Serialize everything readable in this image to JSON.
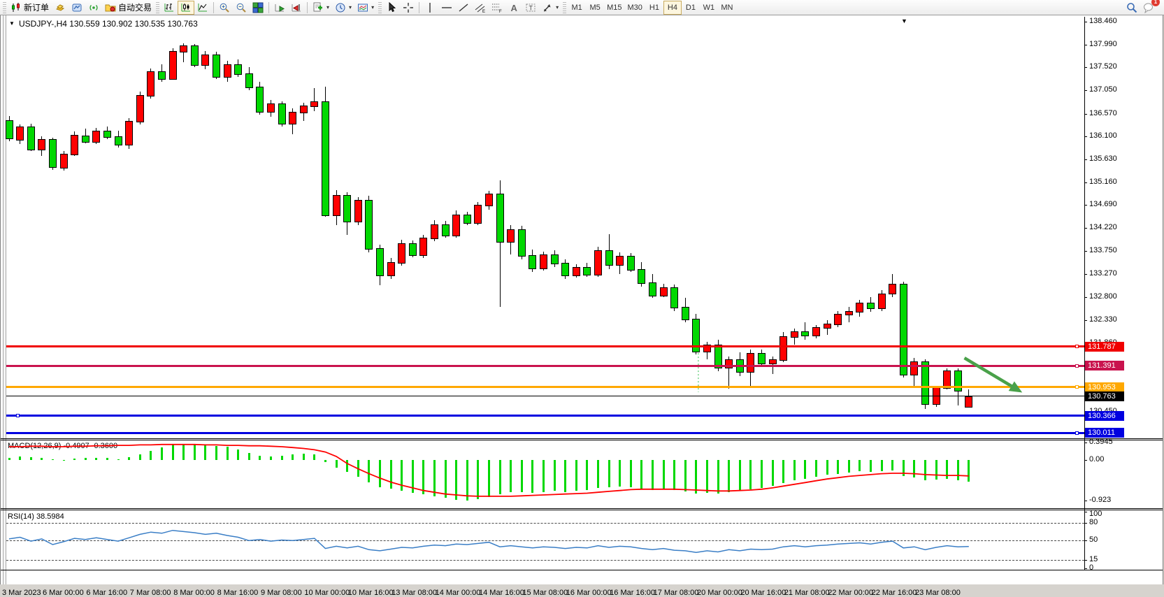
{
  "toolbar": {
    "new_order": "新订单",
    "auto_trading": "自动交易",
    "timeframes": [
      "M1",
      "M5",
      "M15",
      "M30",
      "H1",
      "H4",
      "D1",
      "W1",
      "MN"
    ],
    "active_timeframe": "H4",
    "notification_count": "1",
    "icon_names": [
      "new-order-icon",
      "gold-icon",
      "terminal-icon",
      "signal-icon",
      "autotrade-icon",
      "bar-chart-icon",
      "candlestick-icon",
      "line-chart-icon",
      "zoom-in-icon",
      "zoom-out-icon",
      "tile-windows-icon",
      "autoscroll-icon",
      "chart-shift-icon",
      "add-object-icon",
      "period-icon",
      "template-icon",
      "cursor-icon",
      "crosshair-icon",
      "vertical-line-icon",
      "horizontal-line-icon",
      "trendline-icon",
      "channel-icon",
      "fibonacci-icon",
      "text-icon",
      "label-icon",
      "arrows-icon",
      "search-icon",
      "chat-icon"
    ]
  },
  "chart_title": "USDJPY-,H4  130.559 130.902 130.535 130.763",
  "price_axis_ticks": [
    "138.460",
    "137.990",
    "137.520",
    "137.050",
    "136.570",
    "136.100",
    "135.630",
    "135.160",
    "134.690",
    "134.220",
    "133.750",
    "133.270",
    "132.800",
    "132.330",
    "131.860",
    "131.390",
    "130.920",
    "130.450"
  ],
  "levels": [
    {
      "label": "131.787",
      "price": 131.787,
      "color": "#f00000",
      "thickness": 3,
      "handle": "right"
    },
    {
      "label": "131.391",
      "price": 131.391,
      "color": "#c9134e",
      "thickness": 3,
      "handle": "right"
    },
    {
      "label": "130.953",
      "price": 130.953,
      "color": "#ffa800",
      "thickness": 3,
      "handle": "right"
    },
    {
      "label": "130.763",
      "price": 130.763,
      "color": "#000000",
      "thickness": 1,
      "handle": "none"
    },
    {
      "label": "130.366",
      "price": 130.366,
      "color": "#0000e0",
      "thickness": 3,
      "handle": "left"
    },
    {
      "label": "130.011",
      "price": 130.011,
      "color": "#0000e0",
      "thickness": 3,
      "handle": "right"
    }
  ],
  "time_axis": [
    "3 Mar 2023",
    "6 Mar 00:00",
    "6 Mar 16:00",
    "7 Mar 08:00",
    "8 Mar 00:00",
    "8 Mar 16:00",
    "9 Mar 08:00",
    "10 Mar 00:00",
    "10 Mar 16:00",
    "13 Mar 08:00",
    "14 Mar 00:00",
    "14 Mar 16:00",
    "15 Mar 08:00",
    "16 Mar 00:00",
    "16 Mar 16:00",
    "17 Mar 08:00",
    "20 Mar 00:00",
    "20 Mar 16:00",
    "21 Mar 08:00",
    "22 Mar 00:00",
    "22 Mar 16:00",
    "23 Mar 08:00"
  ],
  "chart_data": {
    "type": "candlestick",
    "symbol": "USDJPY-",
    "timeframe": "H4",
    "ohlc_display": {
      "open": "130.559",
      "high": "130.902",
      "low": "130.535",
      "close": "130.763"
    },
    "ylim": [
      129.9,
      138.56
    ],
    "bull_color": "#ff0000",
    "bear_color": "#00d800",
    "candles": [
      [
        136.43,
        136.52,
        136.0,
        136.08
      ],
      [
        136.05,
        136.35,
        135.95,
        136.31
      ],
      [
        136.3,
        136.36,
        135.8,
        135.84
      ],
      [
        135.84,
        136.1,
        135.7,
        136.05
      ],
      [
        136.04,
        136.08,
        135.42,
        135.48
      ],
      [
        135.47,
        135.8,
        135.4,
        135.74
      ],
      [
        135.74,
        136.2,
        135.7,
        136.13
      ],
      [
        136.12,
        136.26,
        135.96,
        136.0
      ],
      [
        136.0,
        136.28,
        135.94,
        136.22
      ],
      [
        136.22,
        136.3,
        136.05,
        136.1
      ],
      [
        136.1,
        136.22,
        135.88,
        135.95
      ],
      [
        135.95,
        136.48,
        135.85,
        136.42
      ],
      [
        136.42,
        137.02,
        136.35,
        136.95
      ],
      [
        136.95,
        137.5,
        136.88,
        137.44
      ],
      [
        137.44,
        137.58,
        137.22,
        137.3
      ],
      [
        137.3,
        137.92,
        137.28,
        137.86
      ],
      [
        137.86,
        138.01,
        137.62,
        137.97
      ],
      [
        137.97,
        138.0,
        137.52,
        137.58
      ],
      [
        137.58,
        137.85,
        137.48,
        137.78
      ],
      [
        137.78,
        137.84,
        137.28,
        137.34
      ],
      [
        137.34,
        137.66,
        137.22,
        137.58
      ],
      [
        137.58,
        137.68,
        137.32,
        137.4
      ],
      [
        137.4,
        137.52,
        137.05,
        137.12
      ],
      [
        137.12,
        137.22,
        136.55,
        136.62
      ],
      [
        136.62,
        136.85,
        136.5,
        136.78
      ],
      [
        136.78,
        136.82,
        136.3,
        136.38
      ],
      [
        136.38,
        136.68,
        136.15,
        136.6
      ],
      [
        136.6,
        136.8,
        136.42,
        136.74
      ],
      [
        136.74,
        137.1,
        136.62,
        136.82
      ],
      [
        136.82,
        137.12,
        134.45,
        134.5
      ],
      [
        134.5,
        135.0,
        134.28,
        134.9
      ],
      [
        134.9,
        134.96,
        134.08,
        134.36
      ],
      [
        134.36,
        134.86,
        134.28,
        134.8
      ],
      [
        134.8,
        134.88,
        133.72,
        133.8
      ],
      [
        133.8,
        133.88,
        133.05,
        133.26
      ],
      [
        133.26,
        133.6,
        133.18,
        133.52
      ],
      [
        133.52,
        133.98,
        133.45,
        133.9
      ],
      [
        133.9,
        133.96,
        133.62,
        133.68
      ],
      [
        133.68,
        134.08,
        133.6,
        134.02
      ],
      [
        134.02,
        134.38,
        133.95,
        134.3
      ],
      [
        134.3,
        134.36,
        134.02,
        134.08
      ],
      [
        134.08,
        134.58,
        134.02,
        134.5
      ],
      [
        134.5,
        134.56,
        134.28,
        134.34
      ],
      [
        134.34,
        134.76,
        134.28,
        134.7
      ],
      [
        134.7,
        134.99,
        134.6,
        134.92
      ],
      [
        134.92,
        135.2,
        132.6,
        133.95
      ],
      [
        133.95,
        134.28,
        133.68,
        134.2
      ],
      [
        134.2,
        134.26,
        133.58,
        133.66
      ],
      [
        133.66,
        133.78,
        133.32,
        133.4
      ],
      [
        133.4,
        133.74,
        133.35,
        133.68
      ],
      [
        133.68,
        133.76,
        133.42,
        133.5
      ],
      [
        133.5,
        133.58,
        133.18,
        133.26
      ],
      [
        133.26,
        133.48,
        133.2,
        133.42
      ],
      [
        133.42,
        133.5,
        133.22,
        133.28
      ],
      [
        133.28,
        133.84,
        133.22,
        133.76
      ],
      [
        133.76,
        134.1,
        133.38,
        133.48
      ],
      [
        133.48,
        133.72,
        133.28,
        133.65
      ],
      [
        133.65,
        133.7,
        133.32,
        133.38
      ],
      [
        133.38,
        133.52,
        133.02,
        133.1
      ],
      [
        133.1,
        133.28,
        132.78,
        132.85
      ],
      [
        132.85,
        133.08,
        132.8,
        133.0
      ],
      [
        133.0,
        133.06,
        132.52,
        132.6
      ],
      [
        132.6,
        132.78,
        132.28,
        132.35
      ],
      [
        132.35,
        132.46,
        131.62,
        131.7
      ],
      [
        131.7,
        131.88,
        131.52,
        131.82
      ],
      [
        131.82,
        131.92,
        131.28,
        131.36
      ],
      [
        131.36,
        131.58,
        130.92,
        131.52
      ],
      [
        131.52,
        131.66,
        131.18,
        131.28
      ],
      [
        131.28,
        131.72,
        130.98,
        131.65
      ],
      [
        131.65,
        131.72,
        131.38,
        131.45
      ],
      [
        131.45,
        131.58,
        131.22,
        131.52
      ],
      [
        131.52,
        132.08,
        131.46,
        132.0
      ],
      [
        132.0,
        132.16,
        131.82,
        132.1
      ],
      [
        132.1,
        132.28,
        131.92,
        132.02
      ],
      [
        132.02,
        132.22,
        131.95,
        132.18
      ],
      [
        132.18,
        132.32,
        132.02,
        132.26
      ],
      [
        132.26,
        132.52,
        132.18,
        132.45
      ],
      [
        132.45,
        132.6,
        132.28,
        132.52
      ],
      [
        132.52,
        132.75,
        132.4,
        132.68
      ],
      [
        132.68,
        132.8,
        132.5,
        132.58
      ],
      [
        132.58,
        132.95,
        132.52,
        132.88
      ],
      [
        132.88,
        133.28,
        132.8,
        133.08
      ],
      [
        133.08,
        133.12,
        131.15,
        131.22
      ],
      [
        131.22,
        131.55,
        130.95,
        131.48
      ],
      [
        131.48,
        131.52,
        130.5,
        130.62
      ],
      [
        130.62,
        130.98,
        130.55,
        130.95
      ],
      [
        130.95,
        131.34,
        130.9,
        131.29
      ],
      [
        131.29,
        131.33,
        130.58,
        130.89
      ],
      [
        130.559,
        130.902,
        130.535,
        130.763
      ]
    ],
    "macd": {
      "label": "MACD(12,26,9) -0.4907 -0.3600",
      "axis_ticks": [
        {
          "text": "0.3945",
          "value": 0.3945
        },
        {
          "text": "0.00",
          "value": 0
        },
        {
          "text": "-0.923",
          "value": -0.923
        }
      ],
      "ylim": [
        -1.09,
        0.426
      ],
      "hist_color": "#00d800",
      "signal_color": "#ff0000",
      "histogram": [
        0.05,
        0.08,
        0.06,
        0.04,
        0.01,
        -0.02,
        0.03,
        0.04,
        0.05,
        0.04,
        0.02,
        0.06,
        0.12,
        0.2,
        0.28,
        0.34,
        0.36,
        0.35,
        0.33,
        0.32,
        0.3,
        0.24,
        0.16,
        0.1,
        0.08,
        0.1,
        0.12,
        0.14,
        0.12,
        -0.05,
        -0.18,
        -0.27,
        -0.38,
        -0.5,
        -0.62,
        -0.65,
        -0.7,
        -0.74,
        -0.78,
        -0.82,
        -0.86,
        -0.9,
        -0.92,
        -0.88,
        -0.84,
        -0.78,
        -0.72,
        -0.72,
        -0.74,
        -0.72,
        -0.7,
        -0.72,
        -0.7,
        -0.68,
        -0.64,
        -0.62,
        -0.6,
        -0.62,
        -0.65,
        -0.68,
        -0.65,
        -0.68,
        -0.71,
        -0.76,
        -0.74,
        -0.76,
        -0.72,
        -0.7,
        -0.67,
        -0.63,
        -0.58,
        -0.52,
        -0.46,
        -0.42,
        -0.38,
        -0.34,
        -0.31,
        -0.28,
        -0.26,
        -0.27,
        -0.25,
        -0.23,
        -0.36,
        -0.4,
        -0.46,
        -0.45,
        -0.42,
        -0.46,
        -0.49
      ],
      "signal": [
        0.3,
        0.3,
        0.31,
        0.31,
        0.3,
        0.3,
        0.31,
        0.31,
        0.32,
        0.32,
        0.33,
        0.33,
        0.34,
        0.34,
        0.35,
        0.35,
        0.35,
        0.35,
        0.34,
        0.34,
        0.33,
        0.33,
        0.32,
        0.32,
        0.31,
        0.3,
        0.28,
        0.26,
        0.23,
        0.18,
        0.08,
        -0.08,
        -0.2,
        -0.31,
        -0.41,
        -0.5,
        -0.57,
        -0.63,
        -0.69,
        -0.73,
        -0.77,
        -0.79,
        -0.81,
        -0.82,
        -0.82,
        -0.82,
        -0.82,
        -0.81,
        -0.8,
        -0.79,
        -0.78,
        -0.77,
        -0.76,
        -0.75,
        -0.73,
        -0.71,
        -0.69,
        -0.67,
        -0.66,
        -0.66,
        -0.66,
        -0.66,
        -0.67,
        -0.68,
        -0.69,
        -0.7,
        -0.7,
        -0.69,
        -0.68,
        -0.66,
        -0.63,
        -0.59,
        -0.55,
        -0.51,
        -0.47,
        -0.43,
        -0.4,
        -0.37,
        -0.35,
        -0.33,
        -0.31,
        -0.3,
        -0.3,
        -0.31,
        -0.33,
        -0.34,
        -0.35,
        -0.35,
        -0.36
      ]
    },
    "rsi": {
      "label": "RSI(14) 38.5984",
      "axis_ticks": [
        {
          "text": "100",
          "value": 100
        },
        {
          "text": "80",
          "value": 80
        },
        {
          "text": "50",
          "value": 50
        },
        {
          "text": "15",
          "value": 15
        },
        {
          "text": "0",
          "value": 0
        }
      ],
      "levels": [
        80,
        50,
        15
      ],
      "ylim": [
        0,
        100
      ],
      "color": "#3a7ec6",
      "values": [
        52,
        55,
        48,
        52,
        42,
        47,
        53,
        51,
        54,
        51,
        48,
        54,
        60,
        64,
        62,
        67,
        65,
        63,
        60,
        62,
        58,
        55,
        49,
        51,
        48,
        50,
        49,
        51,
        53,
        35,
        39,
        36,
        39,
        33,
        31,
        34,
        37,
        36,
        39,
        41,
        40,
        43,
        42,
        44,
        46,
        38,
        40,
        38,
        36,
        38,
        37,
        35,
        37,
        36,
        40,
        37,
        39,
        38,
        35,
        33,
        35,
        32,
        31,
        28,
        31,
        29,
        33,
        31,
        34,
        33,
        34,
        38,
        40,
        38,
        40,
        41,
        43,
        44,
        45,
        43,
        46,
        48,
        36,
        38,
        33,
        37,
        40,
        38,
        38.6
      ]
    }
  },
  "annotations": {
    "trend_arrow": {
      "color": "#4aa14a",
      "from_bar": 87.6,
      "from_price": 131.55,
      "to_bar": 92.9,
      "to_price": 130.84
    },
    "dotted_vline": {
      "color": "#2fbf4f",
      "bar": 63.2,
      "from_price": 131.65,
      "to_price": 130.85
    },
    "shift_marker": "▼",
    "title_marker": "▼"
  }
}
